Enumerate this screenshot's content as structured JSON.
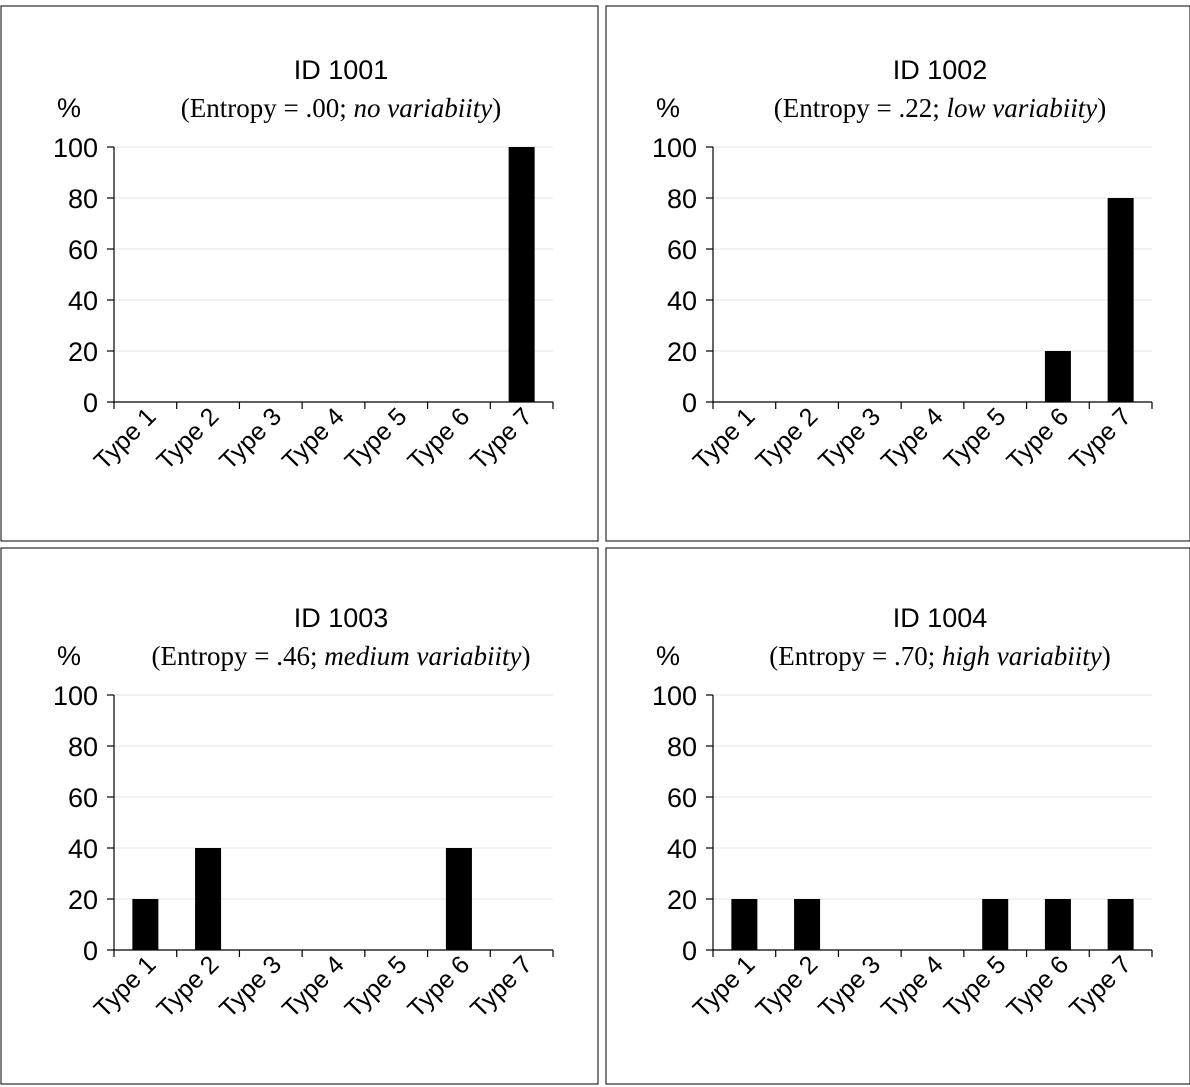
{
  "chart_data": [
    {
      "type": "bar",
      "title": "ID 1001",
      "subtitle_prefix": "(Entropy = .00; ",
      "subtitle_italic": "no variabiity",
      "subtitle_suffix": ")",
      "ylabel": "%",
      "ylim": [
        0,
        100
      ],
      "yticks": [
        "0",
        "20",
        "40",
        "60",
        "80",
        "100"
      ],
      "categories": [
        "Type 1",
        "Type 2",
        "Type 3",
        "Type 4",
        "Type 5",
        "Type 6",
        "Type 7"
      ],
      "values": [
        0,
        0,
        0,
        0,
        0,
        0,
        100
      ],
      "grid": true
    },
    {
      "type": "bar",
      "title": "ID 1002",
      "subtitle_prefix": "(Entropy = .22; ",
      "subtitle_italic": "low variabiity",
      "subtitle_suffix": ")",
      "ylabel": "%",
      "ylim": [
        0,
        100
      ],
      "yticks": [
        "0",
        "20",
        "40",
        "60",
        "80",
        "100"
      ],
      "categories": [
        "Type 1",
        "Type 2",
        "Type 3",
        "Type 4",
        "Type 5",
        "Type 6",
        "Type 7"
      ],
      "values": [
        0,
        0,
        0,
        0,
        0,
        20,
        80
      ],
      "grid": true
    },
    {
      "type": "bar",
      "title": "ID 1003",
      "subtitle_prefix": "(Entropy = .46; ",
      "subtitle_italic": "medium variabiity",
      "subtitle_suffix": ")",
      "ylabel": "%",
      "ylim": [
        0,
        100
      ],
      "yticks": [
        "0",
        "20",
        "40",
        "60",
        "80",
        "100"
      ],
      "categories": [
        "Type 1",
        "Type 2",
        "Type 3",
        "Type 4",
        "Type 5",
        "Type 6",
        "Type 7"
      ],
      "values": [
        20,
        40,
        0,
        0,
        0,
        40,
        0
      ],
      "grid": true
    },
    {
      "type": "bar",
      "title": "ID 1004",
      "subtitle_prefix": "(Entropy = .70; ",
      "subtitle_italic": "high variabiity",
      "subtitle_suffix": ")",
      "ylabel": "%",
      "ylim": [
        0,
        100
      ],
      "yticks": [
        "0",
        "20",
        "40",
        "60",
        "80",
        "100"
      ],
      "categories": [
        "Type 1",
        "Type 2",
        "Type 3",
        "Type 4",
        "Type 5",
        "Type 6",
        "Type 7"
      ],
      "values": [
        20,
        20,
        0,
        0,
        20,
        20,
        20
      ],
      "grid": true
    }
  ]
}
